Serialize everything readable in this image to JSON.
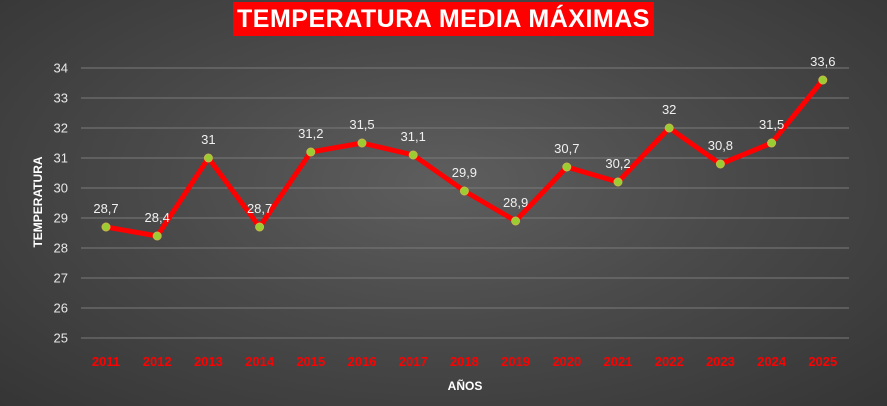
{
  "chart_data": {
    "type": "line",
    "title": "TEMPERATURA MEDIA MÁXIMAS",
    "xlabel": "AÑOS",
    "ylabel": "TEMPERATURA",
    "categories": [
      "2011",
      "2012",
      "2013",
      "2014",
      "2015",
      "2016",
      "2017",
      "2018",
      "2019",
      "2020",
      "2021",
      "2022",
      "2023",
      "2024",
      "2025"
    ],
    "values": [
      28.7,
      28.4,
      31,
      28.7,
      31.2,
      31.5,
      31.1,
      29.9,
      28.9,
      30.7,
      30.2,
      32,
      30.8,
      31.5,
      33.6
    ],
    "data_labels": [
      "28,7",
      "28,4",
      "31",
      "28,7",
      "31,2",
      "31,5",
      "31,1",
      "29,9",
      "28,9",
      "30,7",
      "30,2",
      "32",
      "30,8",
      "31,5",
      "33,6"
    ],
    "yticks": [
      "25",
      "26",
      "27",
      "28",
      "29",
      "30",
      "31",
      "32",
      "33",
      "34"
    ],
    "ylim": [
      25,
      34
    ],
    "grid": true,
    "colors": {
      "line": "#ff0000",
      "marker": "#9acd32",
      "title_bg": "#ff0000",
      "xtick": "#ff0000"
    }
  }
}
